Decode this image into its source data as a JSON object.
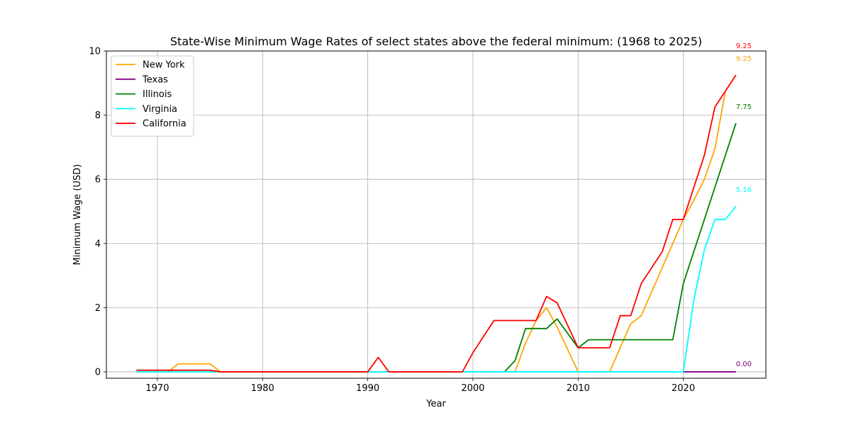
{
  "chart_data": {
    "type": "line",
    "title": "State-Wise Minimum Wage Rates of select states above the federal minimum: (1968 to 2025)",
    "xlabel": "Year",
    "ylabel": "Minimum Wage (USD)",
    "xlim": [
      1965.15,
      2027.85
    ],
    "ylim": [
      -0.2,
      10
    ],
    "xticks": [
      1970,
      1980,
      1990,
      2000,
      2010,
      2020
    ],
    "yticks": [
      0,
      2,
      4,
      6,
      8,
      10
    ],
    "grid": true,
    "legend_position": "top-left",
    "series": [
      {
        "name": "New York",
        "color": "#ffa500",
        "x": [
          1968,
          1969,
          1970,
          1971,
          1972,
          1973,
          1974,
          1975,
          1976,
          1977,
          1978,
          1979,
          1980,
          1981,
          1982,
          1983,
          1984,
          1985,
          1986,
          1987,
          1988,
          1989,
          1990,
          1991,
          1992,
          1993,
          1994,
          1995,
          1996,
          1997,
          1998,
          1999,
          2000,
          2001,
          2002,
          2003,
          2004,
          2005,
          2006,
          2007,
          2008,
          2009,
          2010,
          2011,
          2012,
          2013,
          2014,
          2015,
          2016,
          2017,
          2018,
          2019,
          2020,
          2021,
          2022,
          2023,
          2024,
          2025
        ],
        "values": [
          0,
          0,
          0,
          0,
          0.25,
          0.25,
          0.25,
          0.25,
          0,
          0,
          0,
          0,
          0,
          0,
          0,
          0,
          0,
          0,
          0,
          0,
          0,
          0,
          0,
          0,
          0,
          0,
          0,
          0,
          0,
          0,
          0,
          0,
          0,
          0,
          0,
          0,
          0,
          0.9,
          1.6,
          2.0,
          1.4,
          0.7,
          0,
          0,
          0,
          0,
          0.75,
          1.5,
          1.75,
          2.5,
          3.25,
          4.0,
          4.75,
          5.35,
          6.0,
          6.95,
          8.75,
          9.25
        ],
        "end_label": "9.25"
      },
      {
        "name": "Texas",
        "color": "#800080",
        "x": [
          2020,
          2021,
          2022,
          2023,
          2024,
          2025
        ],
        "values": [
          0,
          0,
          0,
          0,
          0,
          0
        ],
        "end_label": "0.00"
      },
      {
        "name": "Illinois",
        "color": "#008000",
        "x": [
          2003,
          2004,
          2005,
          2006,
          2007,
          2008,
          2009,
          2010,
          2011,
          2012,
          2013,
          2014,
          2015,
          2016,
          2017,
          2018,
          2019,
          2020,
          2021,
          2022,
          2023,
          2024,
          2025
        ],
        "values": [
          0,
          0.35,
          1.35,
          1.35,
          1.35,
          1.65,
          1.2,
          0.75,
          1.0,
          1.0,
          1.0,
          1.0,
          1.0,
          1.0,
          1.0,
          1.0,
          1.0,
          2.75,
          3.75,
          4.75,
          5.75,
          6.75,
          7.75
        ],
        "end_label": "7.75"
      },
      {
        "name": "Virginia",
        "color": "#00ffff",
        "x": [
          1968,
          1975,
          1976,
          1990,
          2000,
          2010,
          2019,
          2020,
          2021,
          2022,
          2023,
          2024,
          2025
        ],
        "values": [
          0,
          0,
          0,
          0,
          0,
          0,
          0,
          0,
          2.25,
          3.8,
          4.75,
          4.75,
          5.16
        ],
        "end_label": "5.16"
      },
      {
        "name": "California",
        "color": "#ff0000",
        "x": [
          1968,
          1969,
          1970,
          1971,
          1972,
          1973,
          1974,
          1975,
          1976,
          1977,
          1978,
          1979,
          1980,
          1981,
          1982,
          1983,
          1984,
          1985,
          1986,
          1987,
          1988,
          1989,
          1990,
          1991,
          1992,
          1993,
          1994,
          1995,
          1996,
          1997,
          1998,
          1999,
          2000,
          2001,
          2002,
          2003,
          2004,
          2005,
          2006,
          2007,
          2008,
          2009,
          2010,
          2011,
          2012,
          2013,
          2014,
          2015,
          2016,
          2017,
          2018,
          2019,
          2020,
          2021,
          2022,
          2023,
          2024,
          2025
        ],
        "values": [
          0.05,
          0.05,
          0.05,
          0.05,
          0.05,
          0.05,
          0.05,
          0.05,
          0,
          0,
          0,
          0,
          0,
          0,
          0,
          0,
          0,
          0,
          0,
          0,
          0,
          0,
          0,
          0.45,
          0,
          0,
          0,
          0,
          0,
          0,
          0,
          0,
          0.6,
          1.1,
          1.6,
          1.6,
          1.6,
          1.6,
          1.6,
          2.35,
          2.15,
          1.45,
          0.75,
          0.75,
          0.75,
          0.75,
          1.75,
          1.75,
          2.75,
          3.25,
          3.75,
          4.75,
          4.75,
          5.75,
          6.75,
          8.25,
          8.75,
          9.25
        ],
        "end_label": "9.25"
      }
    ]
  }
}
